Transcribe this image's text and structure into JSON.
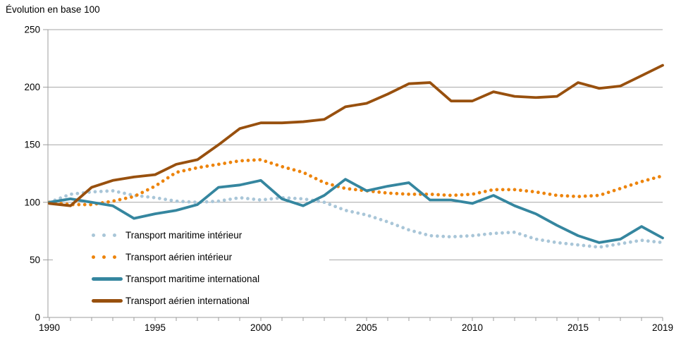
{
  "chart_data": {
    "type": "line",
    "title": "Évolution en base 100",
    "x": [
      1990,
      1991,
      1992,
      1993,
      1994,
      1995,
      1996,
      1997,
      1998,
      1999,
      2000,
      2001,
      2002,
      2003,
      2004,
      2005,
      2006,
      2007,
      2008,
      2009,
      2010,
      2011,
      2012,
      2013,
      2014,
      2015,
      2016,
      2017,
      2018,
      2019
    ],
    "series": [
      {
        "name": "Transport maritime intérieur",
        "style": "dotted",
        "color": "#a9c6d8",
        "values": [
          100,
          107,
          109,
          110,
          106,
          104,
          101,
          100,
          101,
          104,
          102,
          104,
          103,
          100,
          93,
          89,
          83,
          76,
          71,
          70,
          71,
          73,
          74,
          68,
          65,
          63,
          61,
          64,
          67,
          65
        ]
      },
      {
        "name": "Transport aérien intérieur",
        "style": "dotted",
        "color": "#ed840c",
        "values": [
          100,
          98,
          98,
          101,
          105,
          114,
          126,
          130,
          133,
          136,
          137,
          131,
          126,
          117,
          112,
          110,
          108,
          107,
          107,
          106,
          107,
          111,
          111,
          109,
          106,
          105,
          106,
          112,
          118,
          123
        ]
      },
      {
        "name": "Transport maritime international",
        "style": "solid",
        "color": "#35869f",
        "values": [
          100,
          103,
          100,
          97,
          86,
          90,
          93,
          98,
          113,
          115,
          119,
          103,
          97,
          106,
          120,
          110,
          114,
          117,
          102,
          102,
          99,
          106,
          97,
          90,
          80,
          71,
          65,
          68,
          79,
          69
        ]
      },
      {
        "name": "Transport aérien international",
        "style": "solid",
        "color": "#98500e",
        "values": [
          99,
          97,
          113,
          119,
          122,
          124,
          133,
          137,
          150,
          164,
          169,
          169,
          170,
          172,
          183,
          186,
          194,
          203,
          204,
          188,
          188,
          196,
          192,
          191,
          192,
          204,
          199,
          201,
          210,
          219
        ]
      }
    ],
    "ylim": [
      0,
      250
    ],
    "yticks": [
      0,
      50,
      100,
      150,
      200,
      250
    ],
    "xtick_labels": [
      1990,
      1995,
      2000,
      2005,
      2010,
      2015,
      2019
    ],
    "grid": "horizontal",
    "legend_position": "inside-bottom-left",
    "colors": {
      "axis": "#9c9c9c",
      "gridline": "#a6a6a6",
      "text": "#000000",
      "background": "#ffffff"
    }
  }
}
